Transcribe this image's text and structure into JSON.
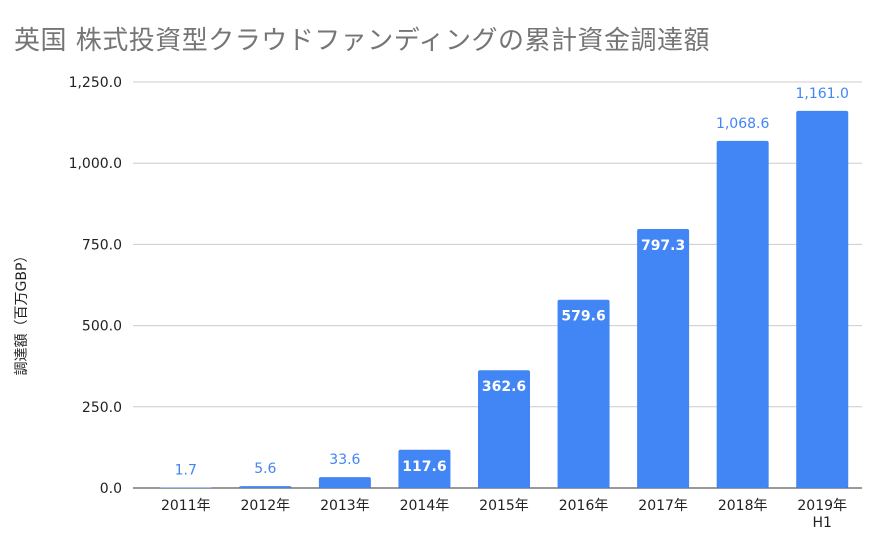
{
  "chart_data": {
    "type": "bar",
    "title": "英国 株式投資型クラウドファンディングの累計資金調達額",
    "ylabel": "調達額（百万GBP）",
    "xlabel": "",
    "categories": [
      "2011年",
      "2012年",
      "2013年",
      "2014年",
      "2015年",
      "2016年",
      "2017年",
      "2018年",
      "2019年 H1"
    ],
    "category_lines": [
      [
        "2011年"
      ],
      [
        "2012年"
      ],
      [
        "2013年"
      ],
      [
        "2014年"
      ],
      [
        "2015年"
      ],
      [
        "2016年"
      ],
      [
        "2017年"
      ],
      [
        "2018年"
      ],
      [
        "2019年",
        "H1"
      ]
    ],
    "values": [
      1.7,
      5.6,
      33.6,
      117.6,
      362.6,
      579.6,
      797.3,
      1068.6,
      1161.0
    ],
    "value_labels": [
      "1.7",
      "5.6",
      "33.6",
      "117.6",
      "362.6",
      "579.6",
      "797.3",
      "1,068.6",
      "1,161.0"
    ],
    "label_inside": [
      false,
      false,
      false,
      true,
      true,
      true,
      true,
      false,
      false
    ],
    "yticks": [
      0,
      250,
      500,
      750,
      1000,
      1250
    ],
    "ytick_labels": [
      "0.0",
      "250.0",
      "500.0",
      "750.0",
      "1,000.0",
      "1,250.0"
    ],
    "ylim": [
      0,
      1250
    ],
    "grid": true,
    "legend": "none",
    "colors": {
      "bar": "#4285f4",
      "label_outside": "#4285f4",
      "label_inside": "#ffffff",
      "grid": "#cccccc",
      "title": "#757575"
    }
  }
}
